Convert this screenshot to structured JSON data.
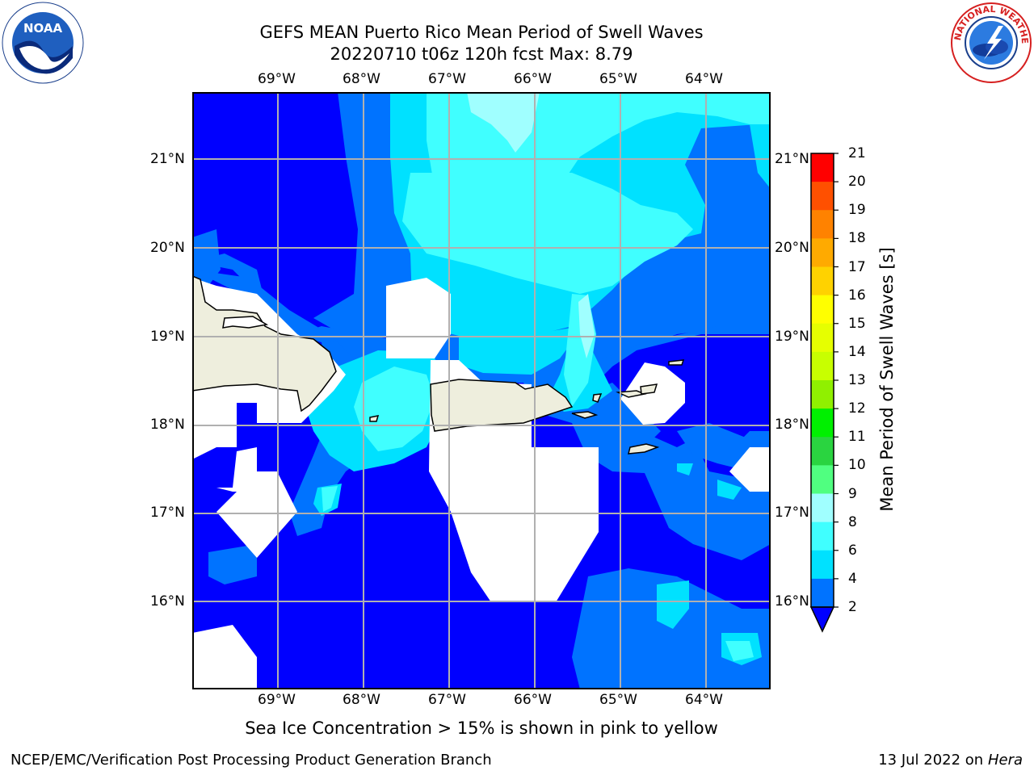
{
  "title": {
    "line1": "GEFS MEAN Puerto Rico Mean Period of Swell Waves",
    "line2": "20220710 t06z 120h fcst   Max: 8.79"
  },
  "logos": {
    "left": {
      "icon": "noaa-logo-icon",
      "text": "NOAA"
    },
    "right": {
      "icon": "national-weather-service-logo-icon",
      "text": "NATIONAL WEATHER SERVICE"
    }
  },
  "map": {
    "region": "Puerto Rico",
    "lon_range": [
      -70.0,
      -63.25
    ],
    "lat_range": [
      15.0,
      21.75
    ],
    "lon_ticks": [
      "69°W",
      "68°W",
      "67°W",
      "66°W",
      "65°W",
      "64°W"
    ],
    "lat_ticks": [
      "21°N",
      "20°N",
      "19°N",
      "18°N",
      "17°N",
      "16°N"
    ],
    "grid": true,
    "land_color": "#eeeedd",
    "missing_color": "#ffffff"
  },
  "colorbar": {
    "label": "Mean Period of Swell Waves [s]",
    "levels": [
      "2",
      "4",
      "6",
      "8",
      "9",
      "10",
      "11",
      "12",
      "13",
      "14",
      "15",
      "16",
      "17",
      "18",
      "19",
      "20",
      "21"
    ],
    "colors": [
      "#0073ff",
      "#00e1ff",
      "#40ffff",
      "#a0ffff",
      "#50ff80",
      "#2ad440",
      "#00f000",
      "#90f000",
      "#c8ff00",
      "#e6ff00",
      "#ffff00",
      "#ffd200",
      "#ffaa00",
      "#ff8200",
      "#ff5000",
      "#ff0000"
    ],
    "under_color": "#0000ff",
    "extend": "min"
  },
  "caption": "Sea Ice Concentration > 15% is shown in pink to yellow",
  "footer": {
    "left": "NCEP/EMC/Verification Post Processing Product Generation Branch",
    "date": "13 Jul 2022 on ",
    "host": "Hera"
  }
}
